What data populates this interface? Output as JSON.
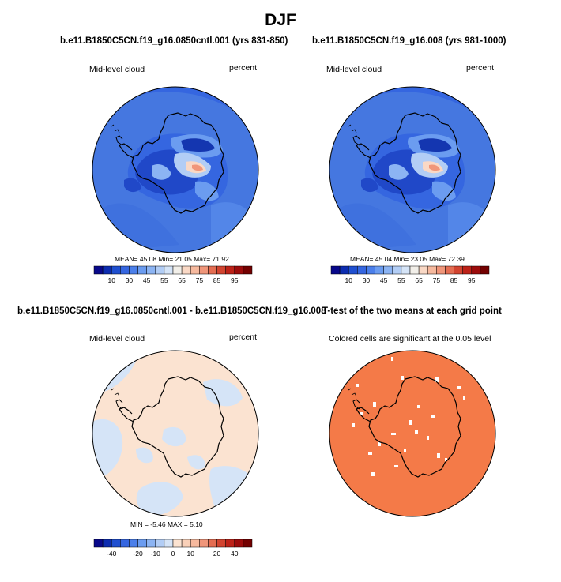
{
  "figure": {
    "title": "DJF",
    "panels": [
      {
        "id": "top-left",
        "title": "b.e11.B1850C5CN.f19_g16.0850cntl.001 (yrs 831-850)",
        "left_label": "Mid-level cloud",
        "right_label": "percent",
        "stats": "MEAN=  45.08  Min=  21.05  Max=  71.92"
      },
      {
        "id": "top-right",
        "title": "b.e11.B1850C5CN.f19_g16.008 (yrs 981-1000)",
        "left_label": "Mid-level cloud",
        "right_label": "percent",
        "stats": "MEAN=  45.04  Min=  23.05  Max=  72.39"
      },
      {
        "id": "bottom-left",
        "title": "b.e11.B1850C5CN.f19_g16.0850cntl.001 - b.e11.B1850C5CN.f19_g16.008",
        "left_label": "Mid-level cloud",
        "right_label": "percent",
        "stats": "MIN =  -5.46  MAX =   5.10"
      },
      {
        "id": "bottom-right",
        "title": "T-test of the two means at each grid point",
        "left_label": "Colored cells are significant at the 0.05 level",
        "right_label": "",
        "stats": ""
      }
    ],
    "colorbar_abs": {
      "tick_labels": [
        "10",
        "30",
        "45",
        "55",
        "65",
        "75",
        "85",
        "95"
      ],
      "colors": [
        "#08088a",
        "#0c2cb0",
        "#1f4fd0",
        "#3566e0",
        "#4b7fea",
        "#6b9cf0",
        "#8cb4f3",
        "#b2cdf5",
        "#d5e4f7",
        "#f2efe9",
        "#f9d8c5",
        "#f6b99e",
        "#f0967a",
        "#e46d52",
        "#d24430",
        "#bd2218",
        "#9c0b0b",
        "#730000"
      ]
    },
    "colorbar_diff": {
      "tick_labels": [
        "-40",
        "-20",
        "-10",
        "0",
        "10",
        "20",
        "40"
      ],
      "colors": [
        "#08088a",
        "#0c2cb0",
        "#1f4fd0",
        "#3566e0",
        "#4b7fea",
        "#6b9cf0",
        "#8cb4f3",
        "#b2cdf5",
        "#d5e4f7",
        "#fbe3d1",
        "#f9d0b8",
        "#f6b99e",
        "#f0967a",
        "#e46d52",
        "#d24430",
        "#bd2218",
        "#9c0b0b",
        "#730000"
      ]
    },
    "map_colors": {
      "ocean_abs": "#4577e0",
      "diff_background": "#fbe3d1",
      "diff_negative": "#d5e4f7",
      "ttest_significant": "#f47a48"
    }
  }
}
